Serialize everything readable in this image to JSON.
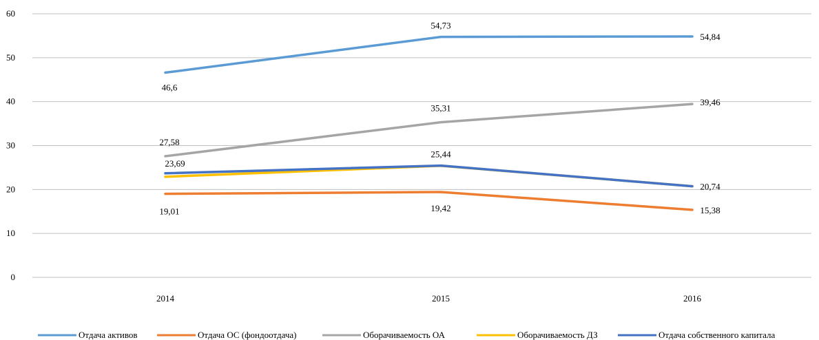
{
  "chart_data": {
    "type": "line",
    "categories": [
      "2014",
      "2015",
      "2016"
    ],
    "yticks": [
      "0",
      "10",
      "20",
      "30",
      "40",
      "50",
      "60"
    ],
    "ylim": [
      0,
      60
    ],
    "grid": true,
    "legend_position": "bottom",
    "series": [
      {
        "name": "Отдача активов",
        "color": "#5b9bd5",
        "values": [
          46.6,
          54.73,
          54.84
        ],
        "labels": [
          "46,6",
          "54,73",
          "54,84"
        ]
      },
      {
        "name": "Отдача ОС (фондоотдача)",
        "color": "#ed7d31",
        "values": [
          19.01,
          19.42,
          15.38
        ],
        "labels": [
          "19,01",
          "19,42",
          "15,38"
        ]
      },
      {
        "name": "Оборачиваемость ОА",
        "color": "#a5a5a5",
        "values": [
          27.58,
          35.31,
          39.46
        ],
        "labels": [
          "27,58",
          "35,31",
          "39,46"
        ]
      },
      {
        "name": "Оборачиваемость ДЗ",
        "color": "#ffc000",
        "values": [
          22.9,
          25.4,
          20.74
        ],
        "labels": [
          "",
          "",
          ""
        ]
      },
      {
        "name": "Отдача собственного капитала",
        "color": "#4472c4",
        "values": [
          23.69,
          25.44,
          20.74
        ],
        "labels": [
          "23,69",
          "25,44",
          "20,74"
        ]
      }
    ]
  }
}
